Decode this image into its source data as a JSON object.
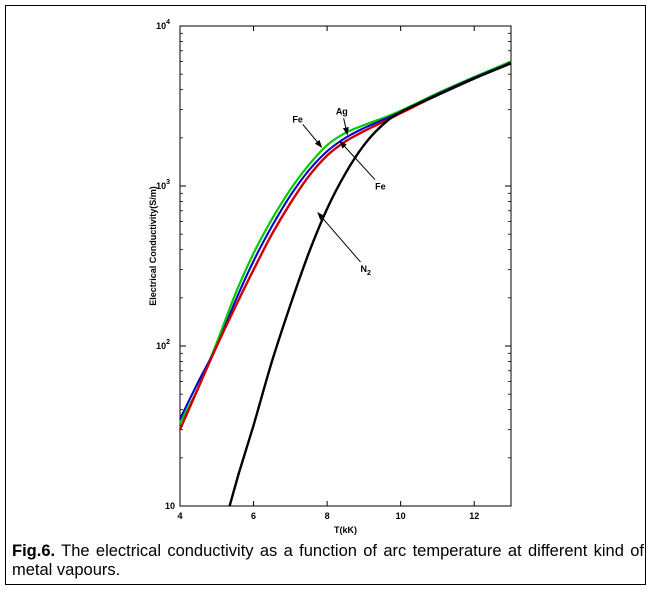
{
  "chart_data": {
    "type": "line",
    "xlabel": "T(kK)",
    "ylabel_main": "Electrical Conductivity",
    "ylabel_unit": "(S/m)",
    "xlim": [
      4,
      13
    ],
    "ylim": [
      10,
      10000
    ],
    "yscale": "log",
    "grid": false,
    "legend": "none",
    "x_ticks": [
      4,
      6,
      8,
      10,
      12
    ],
    "x_tick_labels": [
      "4",
      "6",
      "8",
      "10",
      "12"
    ],
    "y_ticks": [
      {
        "value": 10,
        "base": "10",
        "exp": ""
      },
      {
        "value": 100,
        "base": "10",
        "exp": "2"
      },
      {
        "value": 1000,
        "base": "10",
        "exp": "3"
      },
      {
        "value": 10000,
        "base": "10",
        "exp": "4"
      }
    ],
    "series": [
      {
        "color": "#00cc00",
        "width": 2.2,
        "x": [
          4.0,
          4.5,
          5.0,
          5.5,
          6.0,
          6.5,
          7.0,
          7.5,
          8.0,
          8.5,
          9.0,
          9.5,
          10.0,
          11.0,
          12.0,
          13.0
        ],
        "y": [
          33,
          55,
          105,
          210,
          380,
          620,
          950,
          1350,
          1800,
          2150,
          2400,
          2650,
          2950,
          3800,
          4800,
          6000
        ]
      },
      {
        "color": "#0000cc",
        "width": 2.0,
        "x": [
          4.0,
          4.5,
          5.0,
          5.5,
          6.0,
          6.5,
          7.0,
          7.5,
          8.0,
          8.5,
          9.0,
          9.5,
          10.0,
          11.0,
          12.0,
          13.0
        ],
        "y": [
          35,
          60,
          100,
          190,
          340,
          560,
          870,
          1250,
          1650,
          2000,
          2300,
          2580,
          2900,
          3750,
          4750,
          5900
        ]
      },
      {
        "color": "#cc0000",
        "width": 2.4,
        "x": [
          4.0,
          4.5,
          5.0,
          5.5,
          6.0,
          6.5,
          7.0,
          7.5,
          8.0,
          8.5,
          9.0,
          9.5,
          10.0,
          11.0,
          12.0,
          13.0
        ],
        "y": [
          30,
          55,
          100,
          175,
          300,
          500,
          780,
          1150,
          1550,
          1900,
          2200,
          2500,
          2850,
          3700,
          4700,
          5850
        ]
      },
      {
        "color": "#000000",
        "width": 2.4,
        "x": [
          5.35,
          5.6,
          6.0,
          6.5,
          7.0,
          7.5,
          8.0,
          8.5,
          9.0,
          9.5,
          10.0,
          11.0,
          12.0,
          13.0
        ],
        "y": [
          10,
          16,
          32,
          80,
          180,
          380,
          720,
          1200,
          1800,
          2400,
          2900,
          3700,
          4700,
          5850
        ]
      }
    ],
    "annotations": [
      {
        "text": "Ag",
        "x": 8.4,
        "y": 2800,
        "arrow_to_x": 8.55,
        "arrow_to_y": 2100
      },
      {
        "text": "Fe",
        "x": 7.2,
        "y": 2500,
        "arrow_to_x": 7.85,
        "arrow_to_y": 1750
      },
      {
        "text": "Fe",
        "x": 9.45,
        "y": 950,
        "arrow_to_x": 8.35,
        "arrow_to_y": 1900
      },
      {
        "text": "N",
        "sub": "2",
        "x": 9.05,
        "y": 290,
        "arrow_to_x": 7.75,
        "arrow_to_y": 680
      }
    ]
  },
  "caption": {
    "label": "Fig.6.",
    "text": " The electrical conductivity as a function of arc temperature at different kind  of metal  vapours."
  }
}
